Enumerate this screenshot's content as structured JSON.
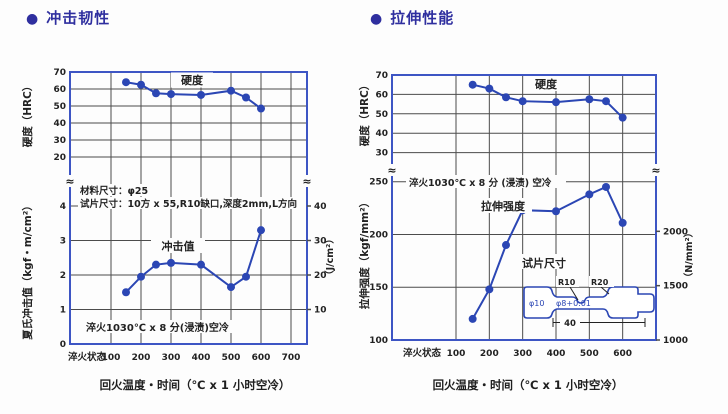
{
  "colors": {
    "series": "#2b46b4",
    "border": "#3d55c4",
    "grid": "#4c4c4c",
    "title": "#2f2f9f",
    "text": "#222222",
    "bg": "#fdfdfd"
  },
  "chart_data": [
    {
      "type": "line",
      "section_title": "冲击韧性",
      "bullet": "●",
      "x_axis": {
        "origin_label": "淬火状态",
        "ticks": [
          100,
          200,
          300,
          400,
          500,
          600,
          700
        ],
        "title": "回火温度・时间（℃ x 1 小时空冷）"
      },
      "hardness_axis": {
        "label": "硬度（HRC）",
        "ticks": [
          70,
          60,
          50,
          40,
          30,
          20
        ],
        "range": [
          20,
          70
        ]
      },
      "impact_axis": {
        "label": "夏氏冲击值（kgf・m/cm²）",
        "ticks": [
          4,
          3,
          2,
          1,
          0
        ],
        "range": [
          0,
          4
        ]
      },
      "right_axis": {
        "label": "（J/cm²）",
        "ticks": [
          40,
          30,
          20,
          10
        ]
      },
      "x": [
        150,
        200,
        250,
        300,
        400,
        500,
        550,
        600
      ],
      "series": [
        {
          "name": "硬度",
          "axis": "hardness",
          "values": [
            64,
            62.5,
            57.5,
            57,
            56.5,
            59,
            55,
            48.5
          ]
        },
        {
          "name": "冲击值",
          "axis": "impact",
          "values": [
            1.5,
            1.95,
            2.3,
            2.35,
            2.3,
            1.65,
            1.95,
            3.3
          ]
        }
      ],
      "annotations": [
        "材料尺寸：φ25",
        "试片尺寸：10方 x 55,R10缺口,深度2mm,L方向",
        "淬火1030℃ x 8 分(浸渍)空冷"
      ]
    },
    {
      "type": "line",
      "section_title": "拉伸性能",
      "bullet": "●",
      "x_axis": {
        "origin_label": "淬火状态",
        "ticks": [
          100,
          200,
          300,
          400,
          500,
          600
        ],
        "title": "回火温度・时间（℃ x 1 小时空冷）"
      },
      "hardness_axis": {
        "label": "硬度（HRC）",
        "ticks": [
          70,
          60,
          50,
          40,
          30
        ],
        "range": [
          30,
          70
        ]
      },
      "tensile_axis": {
        "label": "拉伸强度（kgf/mm²）",
        "ticks": [
          250,
          200,
          150,
          100
        ],
        "range": [
          100,
          250
        ]
      },
      "right_axis": {
        "label": "（N/mm²）",
        "ticks": [
          2000,
          1500,
          1000
        ]
      },
      "x": [
        150,
        200,
        250,
        300,
        400,
        500,
        550,
        600
      ],
      "series": [
        {
          "name": "硬度",
          "axis": "hardness",
          "values": [
            65,
            63,
            58.5,
            56.5,
            56,
            57.5,
            56.5,
            48
          ]
        },
        {
          "name": "拉伸强度",
          "axis": "tensile",
          "values": [
            120,
            148,
            190,
            223,
            222,
            238,
            245,
            211
          ]
        }
      ],
      "annotations": [
        "淬火1030℃ x 8 分 (浸渍) 空冷",
        "试片尺寸"
      ],
      "specimen": {
        "labels": [
          "R10",
          "R20",
          "φ10",
          "φ8+0.01",
          "40"
        ]
      }
    }
  ]
}
